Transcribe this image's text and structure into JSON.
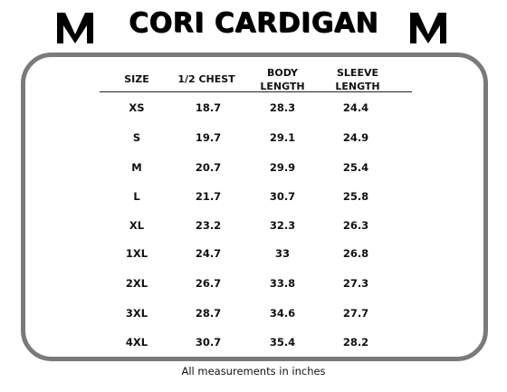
{
  "title": "CORI CARDIGAN",
  "logo_icon": "v-chevron-logo",
  "headers": [
    {
      "line1": "SIZE",
      "line2": ""
    },
    {
      "line1": "1/2 CHEST",
      "line2": ""
    },
    {
      "line1": "BODY",
      "line2": "LENGTH"
    },
    {
      "line1": "SLEEVE",
      "line2": "LENGTH"
    }
  ],
  "rows": [
    [
      "XS",
      "18.7",
      "28.3",
      "24.4"
    ],
    [
      "S",
      "19.7",
      "29.1",
      "24.9"
    ],
    [
      "M",
      "20.7",
      "29.9",
      "25.4"
    ],
    [
      "L",
      "21.7",
      "30.7",
      "25.8"
    ],
    [
      "XL",
      "23.2",
      "32.3",
      "26.3"
    ],
    [
      "1XL",
      "24.7",
      "33",
      "26.8"
    ],
    [
      "2XL",
      "26.7",
      "33.8",
      "27.3"
    ],
    [
      "3XL",
      "28.7",
      "34.6",
      "27.7"
    ],
    [
      "4XL",
      "30.7",
      "35.4",
      "28.2"
    ]
  ],
  "footer": "All measurements in inches",
  "colors": {
    "frame": "#7a7a7a",
    "text": "#111111"
  }
}
